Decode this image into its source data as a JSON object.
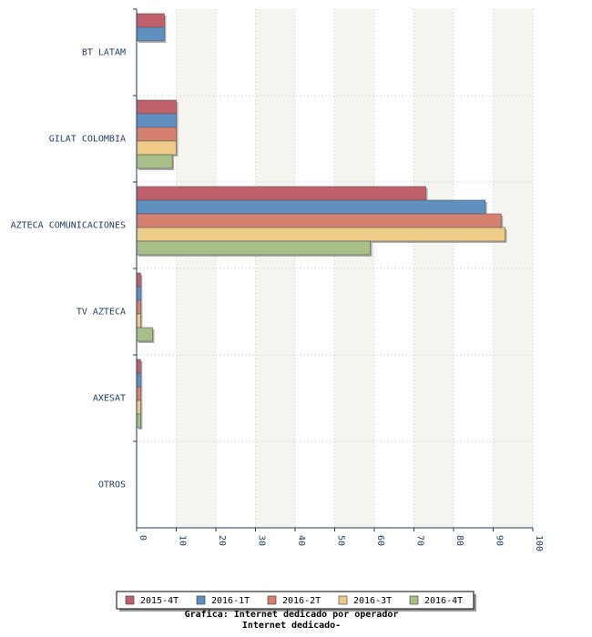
{
  "chart_data": {
    "type": "bar",
    "orientation": "horizontal",
    "categories": [
      "BT LATAM",
      "GILAT COLOMBIA",
      "AZTECA COMUNICACIONES",
      "TV AZTECA",
      "AXESAT",
      "OTROS"
    ],
    "series": [
      {
        "name": "2015-4T",
        "color": "#c0606a",
        "values": [
          7,
          10,
          73,
          1,
          1,
          0
        ]
      },
      {
        "name": "2016-1T",
        "color": "#6090c0",
        "values": [
          7,
          10,
          88,
          1,
          1,
          0
        ]
      },
      {
        "name": "2016-2T",
        "color": "#d68070",
        "values": [
          0,
          10,
          92,
          1,
          1,
          0
        ]
      },
      {
        "name": "2016-3T",
        "color": "#eecc88",
        "values": [
          0,
          10,
          93,
          1,
          1,
          0
        ]
      },
      {
        "name": "2016-4T",
        "color": "#a8c088",
        "values": [
          0,
          9,
          59,
          4,
          1,
          0
        ]
      }
    ],
    "xlim": [
      0,
      100
    ],
    "xticks": [
      "0",
      "10",
      "20",
      "30",
      "40",
      "50",
      "60",
      "70",
      "80",
      "90",
      "100"
    ],
    "grid": true,
    "legend_position": "bottom",
    "caption_line1": "Grafica: Internet dedicado por operador",
    "caption_line2": "Internet dedicado-"
  }
}
